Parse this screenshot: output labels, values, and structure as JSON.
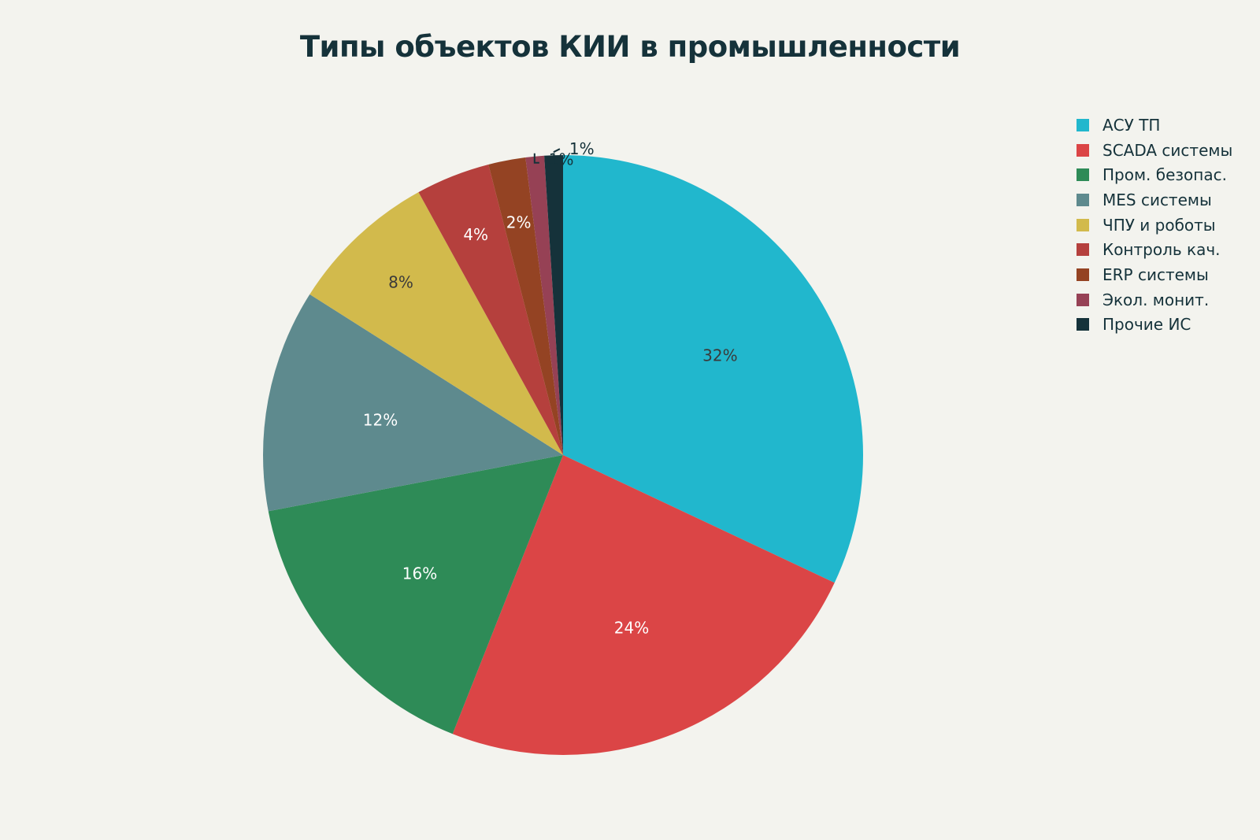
{
  "chart_data": {
    "type": "pie",
    "title": "Типы объектов КИИ в промышленности",
    "legend_position": "top-right",
    "labels": [
      "АСУ ТП",
      "SCADA системы",
      "Пром. безопас.",
      "MES системы",
      "ЧПУ и роботы",
      "Контроль кач.",
      "ERP системы",
      "Экол. монит.",
      "Прочие ИС"
    ],
    "values": [
      32,
      24,
      16,
      12,
      8,
      4,
      2,
      1,
      1
    ],
    "value_labels": [
      "32%",
      "24%",
      "16%",
      "12%",
      "8%",
      "4%",
      "2%",
      "1%",
      "1%"
    ],
    "colors": [
      "#21b7cd",
      "#db4546",
      "#2e8b57",
      "#5e8a8e",
      "#d2ba4c",
      "#b5403d",
      "#944323",
      "#964155",
      "#15323a"
    ],
    "label_colors": [
      "#3a3a3a",
      "#ffffff",
      "#ffffff",
      "#ffffff",
      "#3a3a3a",
      "#ffffff",
      "#ffffff",
      "#15323a",
      "#15323a"
    ]
  }
}
